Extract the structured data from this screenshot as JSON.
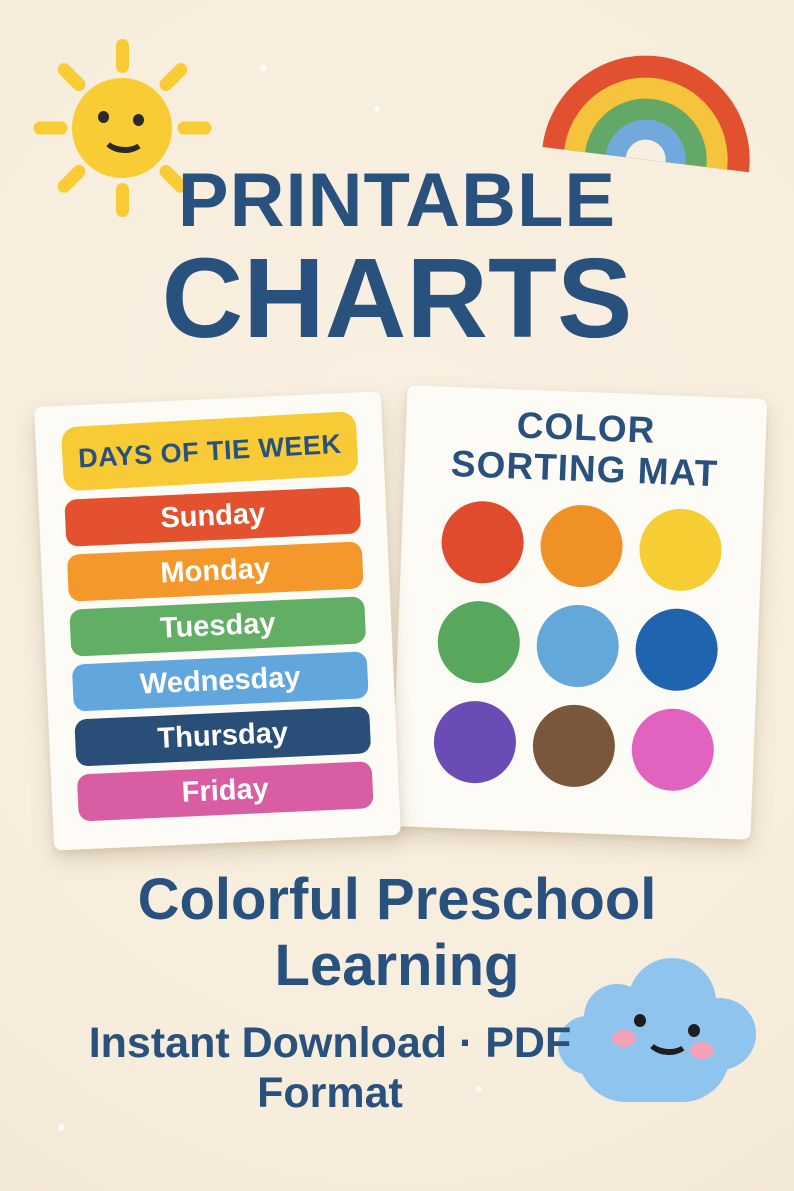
{
  "hero": {
    "line1": "PRINTABLE",
    "line2": "CHARTS"
  },
  "days_card": {
    "header": "DAYS OF TIE WEEK",
    "header_bg": "#F8CB36",
    "days": [
      {
        "label": "Sunday",
        "color": "#E4512F"
      },
      {
        "label": "Monday",
        "color": "#F5982B"
      },
      {
        "label": "Tuesday",
        "color": "#61AE64"
      },
      {
        "label": "Wednesday",
        "color": "#61A7DD"
      },
      {
        "label": "Thursday",
        "color": "#294F78"
      },
      {
        "label": "Friday",
        "color": "#D95DA2"
      }
    ]
  },
  "sorting_card": {
    "title_line1": "COLOR",
    "title_line2": "SORTING MAT",
    "circles": [
      {
        "name": "red",
        "color": "#E04B2D"
      },
      {
        "name": "orange",
        "color": "#F09125"
      },
      {
        "name": "yellow",
        "color": "#F6CE33"
      },
      {
        "name": "green",
        "color": "#57A75D"
      },
      {
        "name": "light-blue",
        "color": "#64A7DA"
      },
      {
        "name": "dark-blue",
        "color": "#1F64AF"
      },
      {
        "name": "purple",
        "color": "#6A4CB4"
      },
      {
        "name": "brown",
        "color": "#7A573A"
      },
      {
        "name": "pink",
        "color": "#E263BF"
      }
    ]
  },
  "tagline": {
    "line1": "Colorful Preschool",
    "line2": "Learning"
  },
  "footer": {
    "line1": "Instant Download · PDF",
    "line2": "Format"
  },
  "decorations": {
    "sun": "smiling-sun",
    "cloud": "smiling-cloud",
    "rainbow": "rainbow-arc",
    "rainbow_colors": [
      "#E2512F",
      "#F5C33C",
      "#63A866",
      "#72A9DC"
    ]
  },
  "colors": {
    "background": "#F8EFE0",
    "navy": "#29517E",
    "sun_yellow": "#F9CC35",
    "cloud_blue": "#8FC4EF",
    "cheek_pink": "#F2A3B8"
  }
}
